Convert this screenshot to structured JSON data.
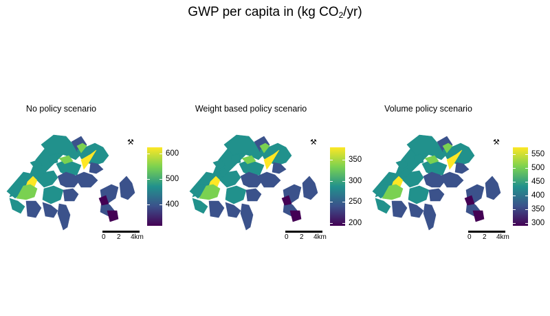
{
  "title": {
    "main": "GWP per capita in (kg CO",
    "subscript": "2",
    "slash": "/",
    "units_end": "yr)"
  },
  "colors": {
    "viridis_top": "#fde725",
    "viridis_upper": "#7ad151",
    "viridis_mid": "#21918c",
    "viridis_lower": "#3b528b",
    "viridis_bottom": "#440154"
  },
  "north_arrow_icon": "north-arrow-icon",
  "panels": [
    {
      "title": "No policy scenario",
      "legend_ticks": [
        "600",
        "500",
        "400"
      ],
      "legend_values": [
        600,
        500,
        400
      ],
      "legend_range": [
        315,
        625
      ],
      "scale_labels": [
        "0",
        "2",
        "4km"
      ]
    },
    {
      "title": "Weight based policy scenario",
      "legend_ticks": [
        "350",
        "300",
        "250",
        "200"
      ],
      "legend_values": [
        350,
        300,
        250,
        200
      ],
      "legend_range": [
        193,
        380
      ],
      "scale_labels": [
        "0",
        "2",
        "4km"
      ]
    },
    {
      "title": "Volume policy scenario",
      "legend_ticks": [
        "550",
        "500",
        "450",
        "400",
        "350",
        "300"
      ],
      "legend_values": [
        550,
        500,
        450,
        400,
        350,
        300
      ],
      "legend_range": [
        290,
        575
      ],
      "scale_labels": [
        "0",
        "2",
        "4km"
      ]
    }
  ]
}
